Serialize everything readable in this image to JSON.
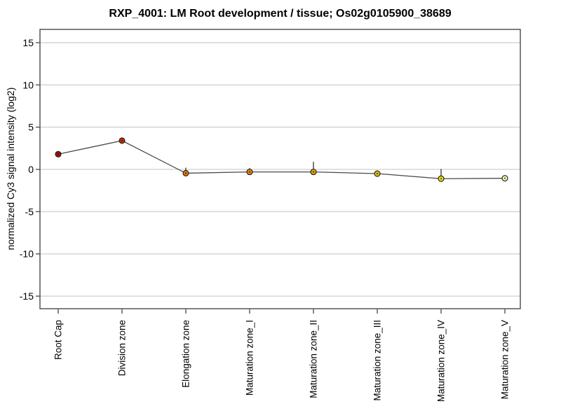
{
  "chart_data": {
    "type": "line",
    "title": "RXP_4001: LM Root development / tissue; Os02g0105900_38689",
    "ylabel": "normalized Cy3 signal intensity (log2)",
    "xlabel": "",
    "categories": [
      "Root Cap",
      "Division zone",
      "Elongation zone",
      "Maturation zone_I",
      "Maturation zone_II",
      "Maturation zone_III",
      "Maturation zone_IV",
      "Maturation zone_V"
    ],
    "series": [
      {
        "name": "normalized Cy3 signal intensity (log2)",
        "values": [
          1.8,
          3.4,
          -0.45,
          -0.3,
          -0.3,
          -0.5,
          -1.1,
          -1.05
        ],
        "error_upper_tops": [
          null,
          null,
          0.2,
          0.15,
          0.9,
          null,
          0.05,
          null
        ],
        "point_colors": [
          "#a01212",
          "#c42b10",
          "#e87610",
          "#e88610",
          "#e0a510",
          "#dcc30e",
          "#e8e00e",
          "#f2f2b4"
        ]
      }
    ],
    "yticks": [
      15,
      10,
      5,
      0,
      -5,
      -10,
      -15
    ],
    "ylim": [
      -16.5,
      16.5
    ],
    "grid": "horizontal",
    "legend": "none",
    "colors": {
      "line": "#4a4a4a",
      "gridline": "#d8d8d8",
      "frame": "#2b2b2b",
      "tick": "#555555",
      "marker_outline": "#1a1a1a",
      "marker_center_dot": "rgba(40,20,0,0.65)",
      "background": "#ffffff"
    }
  }
}
